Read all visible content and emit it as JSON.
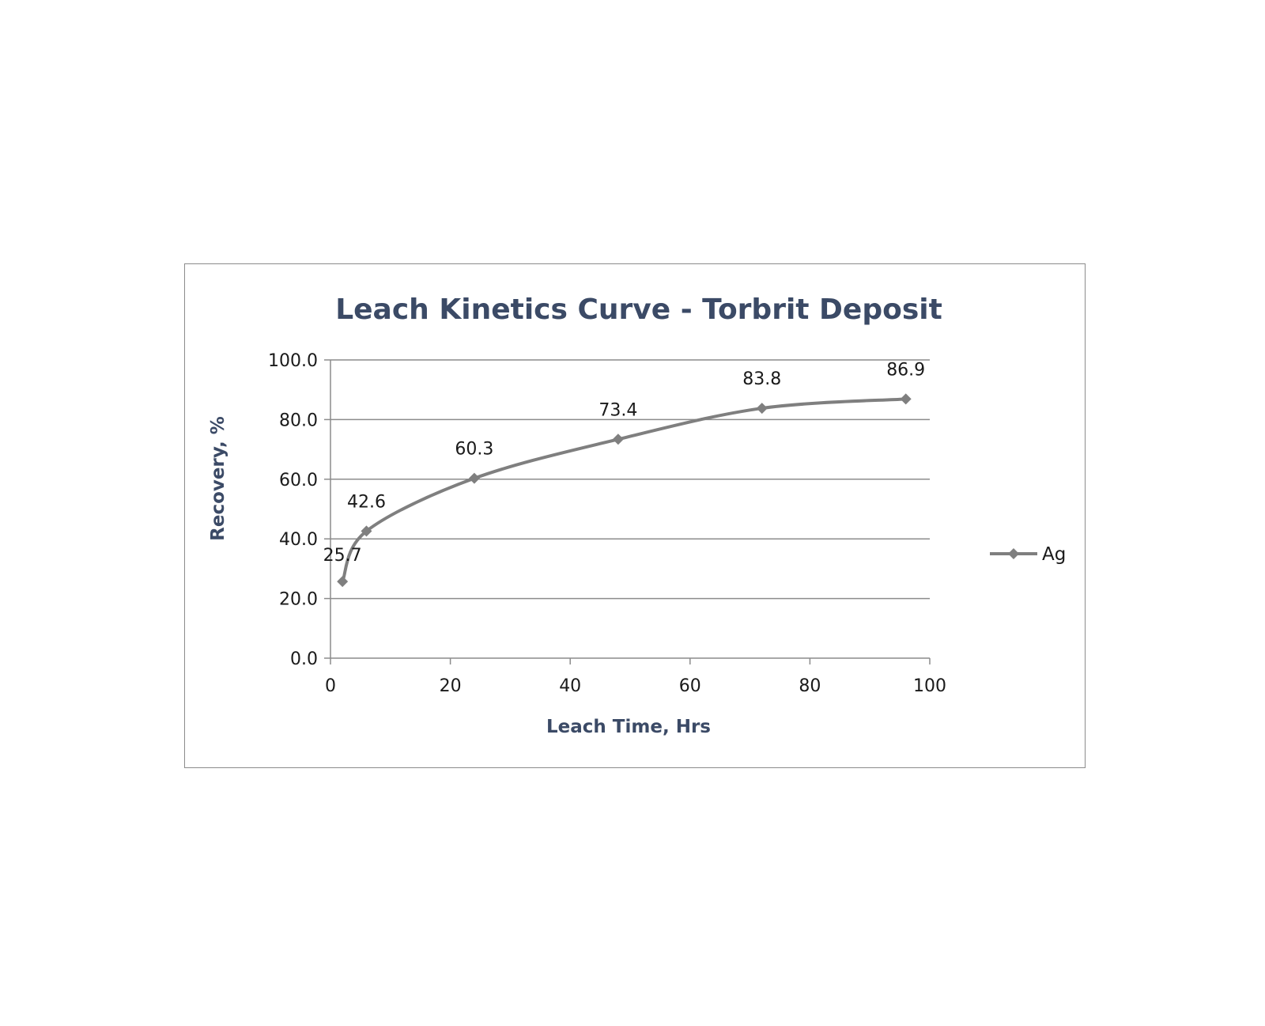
{
  "chart_data": {
    "type": "line",
    "title": "Leach Kinetics Curve - Torbrit Deposit",
    "xlabel": "Leach Time, Hrs",
    "ylabel": "Recovery, %",
    "xlim": [
      0,
      100
    ],
    "ylim": [
      0,
      100
    ],
    "x_ticks": [
      "0",
      "20",
      "40",
      "60",
      "80",
      "100"
    ],
    "y_ticks": [
      "0.0",
      "20.0",
      "40.0",
      "60.0",
      "80.0",
      "100.0"
    ],
    "grid": "horizontal",
    "legend": "right",
    "series": [
      {
        "name": "Ag",
        "color": "#7f7f7f",
        "smooth": true,
        "marker": "diamond",
        "x": [
          2,
          6,
          24,
          48,
          72,
          96
        ],
        "y": [
          25.7,
          42.6,
          60.3,
          73.4,
          83.8,
          86.9
        ],
        "labels": [
          "25.7",
          "42.6",
          "60.3",
          "73.4",
          "83.8",
          "86.9"
        ]
      }
    ]
  }
}
